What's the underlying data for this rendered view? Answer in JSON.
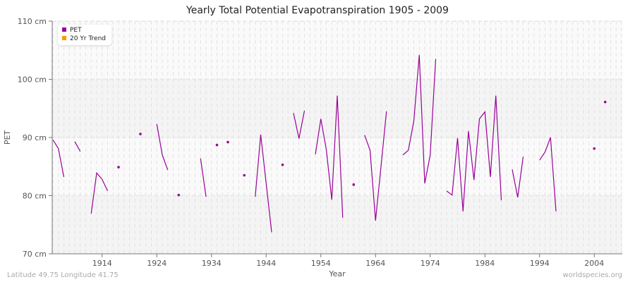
{
  "chart_data": {
    "type": "line",
    "title": "Yearly Total Potential Evapotranspiration 1905 - 2009",
    "xlabel": "Year",
    "ylabel": "PET",
    "xlim": [
      1905,
      2009
    ],
    "ylim": [
      70,
      110
    ],
    "y_unit": "cm",
    "yticks": [
      "70 cm",
      "80 cm",
      "90 cm",
      "100 cm",
      "110 cm"
    ],
    "xticks": [
      "1914",
      "1924",
      "1934",
      "1944",
      "1954",
      "1964",
      "1974",
      "1984",
      "1994",
      "2004"
    ],
    "grid": true,
    "legend_position": "top-left",
    "legend": [
      {
        "name": "PET",
        "color": "#990099"
      },
      {
        "name": "20 Yr Trend",
        "color": "#ff9900"
      }
    ],
    "series": [
      {
        "name": "PET",
        "color": "#990099",
        "x_start": 1905,
        "values": [
          89.6,
          88.1,
          83.2,
          null,
          89.3,
          87.6,
          null,
          76.9,
          83.9,
          82.8,
          80.8,
          null,
          84.9,
          null,
          null,
          null,
          90.6,
          null,
          null,
          92.3,
          87.0,
          84.4,
          null,
          80.1,
          null,
          null,
          null,
          86.4,
          79.8,
          null,
          88.7,
          null,
          89.2,
          null,
          null,
          83.5,
          null,
          79.8,
          90.5,
          82.1,
          73.7,
          null,
          85.3,
          null,
          94.2,
          89.8,
          94.6,
          null,
          87.1,
          93.2,
          87.9,
          79.3,
          97.2,
          76.2,
          null,
          81.9,
          null,
          90.4,
          87.8,
          75.7,
          85.0,
          94.5,
          null,
          null,
          87.0,
          87.8,
          92.8,
          104.2,
          82.1,
          87.0,
          103.5,
          null,
          80.8,
          80.1,
          89.9,
          77.3,
          91.1,
          82.7,
          93.2,
          94.4,
          83.2,
          97.2,
          79.2,
          null,
          84.5,
          79.7,
          86.7,
          null,
          null,
          86.1,
          87.5,
          90.0,
          77.3,
          null,
          null,
          null,
          null,
          null,
          null,
          88.1,
          null,
          96.1,
          null,
          null,
          null
        ]
      }
    ]
  },
  "footer": {
    "left": "Latitude 49.75 Longitude 41.75",
    "right": "worldspecies.org"
  }
}
